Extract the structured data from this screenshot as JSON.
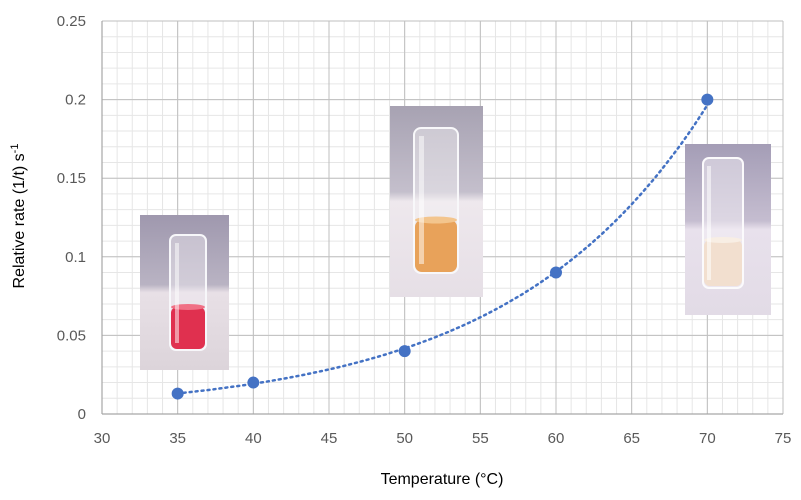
{
  "chart_data": {
    "type": "scatter",
    "title": "",
    "xlabel": "Temperature (°C)",
    "ylabel_main": "Relative rate (1/t) s",
    "ylabel_sup": "-1",
    "xlim": [
      30,
      75
    ],
    "ylim": [
      0,
      0.25
    ],
    "x_ticks": [
      30,
      35,
      40,
      45,
      50,
      55,
      60,
      65,
      70,
      75
    ],
    "y_ticks": [
      "0",
      "0.05",
      "0.1",
      "0.15",
      "0.2",
      "0.25"
    ],
    "y_tick_values": [
      0,
      0.05,
      0.1,
      0.15,
      0.2,
      0.25
    ],
    "grid": true,
    "minor_grid": true,
    "trendline": "exponential, dotted",
    "series": [
      {
        "x": [
          35,
          40,
          50,
          60,
          70
        ],
        "y": [
          0.013,
          0.02,
          0.04,
          0.09,
          0.2
        ],
        "marker_color": "#4472C4",
        "line_color": "#4472C4"
      }
    ],
    "photos": [
      {
        "near_x": 35,
        "liquid": "red",
        "liquid_color": "#e0304f"
      },
      {
        "near_x": 50,
        "liquid": "orange",
        "liquid_color": "#e8a25a"
      },
      {
        "near_x": 70,
        "liquid": "colorless",
        "liquid_color": "#f2dfcf"
      }
    ]
  }
}
